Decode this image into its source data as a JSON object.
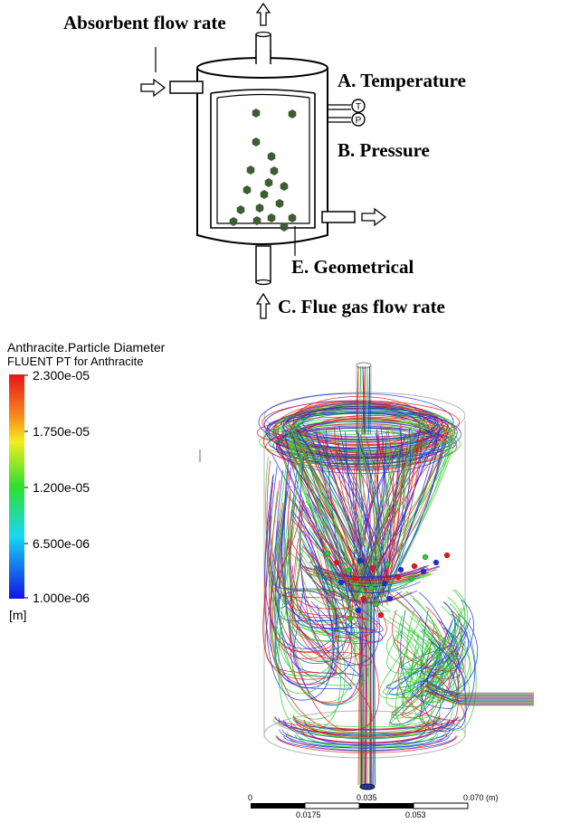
{
  "schematic": {
    "labels": {
      "absorbent": "Absorbent  flow rate",
      "temperature": "A. Temperature",
      "pressure": "B. Pressure",
      "geometrical": "E. Geometrical",
      "flue_gas": "C. Flue gas flow rate"
    },
    "gauges": {
      "t": "T",
      "p": "P"
    },
    "particle_color": "#3f5d33"
  },
  "legend": {
    "title_line1": "Anthracite.Particle Diameter",
    "title_line2": "FLUENT PT for Anthracite",
    "ticks": [
      "2.300e-05",
      "1.750e-05",
      "1.200e-05",
      "6.500e-06",
      "1.000e-06"
    ],
    "unit": "[m]"
  },
  "scale_bar": {
    "top_labels": [
      "0",
      "0.035",
      "0.070  (m)"
    ],
    "bottom_labels": [
      "0.0175",
      "0.053"
    ]
  },
  "colors": {
    "red": "#e8141b",
    "green": "#2ecc2e",
    "blue": "#1a2ee6"
  }
}
